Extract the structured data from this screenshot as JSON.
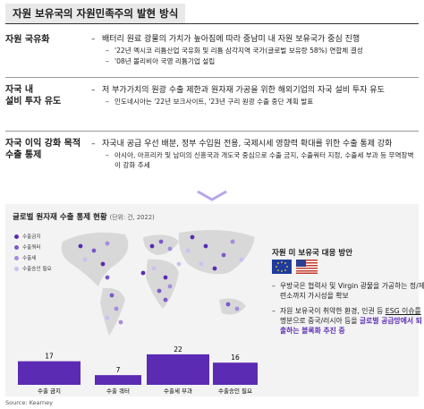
{
  "header": {
    "title": "자원 보유국의 자원민족주의 발현 방식"
  },
  "sections": [
    {
      "label": "자원 국유화",
      "bullet": "배터리 원료 광물의 가치가 높아짐에 따라 중남미 내 자원 보유국가 중심 진행",
      "subs": [
        "'22년 멕시코 리튬산업 국유화 및 리튬 삼각지역 국가(글로벌 보유량 58%) 연합체 결성",
        "'08년 볼리비아 국영 리튬기업 설립"
      ]
    },
    {
      "label": [
        "자국 내",
        "설비 투자 유도"
      ],
      "bullet": "저 부가가치의 원광 수출 제한과 원자재 가공을 위한 해외기업의 자국 설비 투자 유도",
      "subs": [
        "인도네시아는 '22년 보크사이트, '23년 구리 원광 수출 중단 계획 발표"
      ]
    },
    {
      "label": [
        "자국 이익 강화 목적",
        "수출 통제"
      ],
      "bullet": "자국내 공급 우선 배분, 정부 수입원 전용, 국제시세 영향력 확대를 위한 수출 통제 강화",
      "subs": [
        "아시아, 아프리카 및 남미의 신흥국과 개도국 중심으로 수출 금지, 수출쿼터 지정, 수출세 부과 등 무역장벽이 강화 추세"
      ]
    }
  ],
  "export_chart": {
    "title": "글로벌 원자재 수출 통제 현황",
    "unit": "(단위: 건, 2022)",
    "legend": [
      "수출금지",
      "수출쿼터",
      "수출세",
      "수출승인 필요"
    ],
    "categories": [
      "수출 금지",
      "수출 쿼터",
      "수출세 부과",
      "수출승인 필요"
    ],
    "values": [
      17,
      7,
      22,
      16
    ]
  },
  "response": {
    "title": "자원 미 보유국 대응 방안",
    "bullets": [
      "우방국은 협력사 및 Virgin 광물을 가공하는 정/제련소까지 가시성을 확보",
      [
        "자원 보유국이 취약한 환경, 인권 등 ",
        "ESG 이슈를",
        " 명분으로 중국/러시아 등을 ",
        "글로벌 공급망에서 퇴출하는 블록화 추진 중"
      ]
    ]
  },
  "source": "Source: Kearney"
}
